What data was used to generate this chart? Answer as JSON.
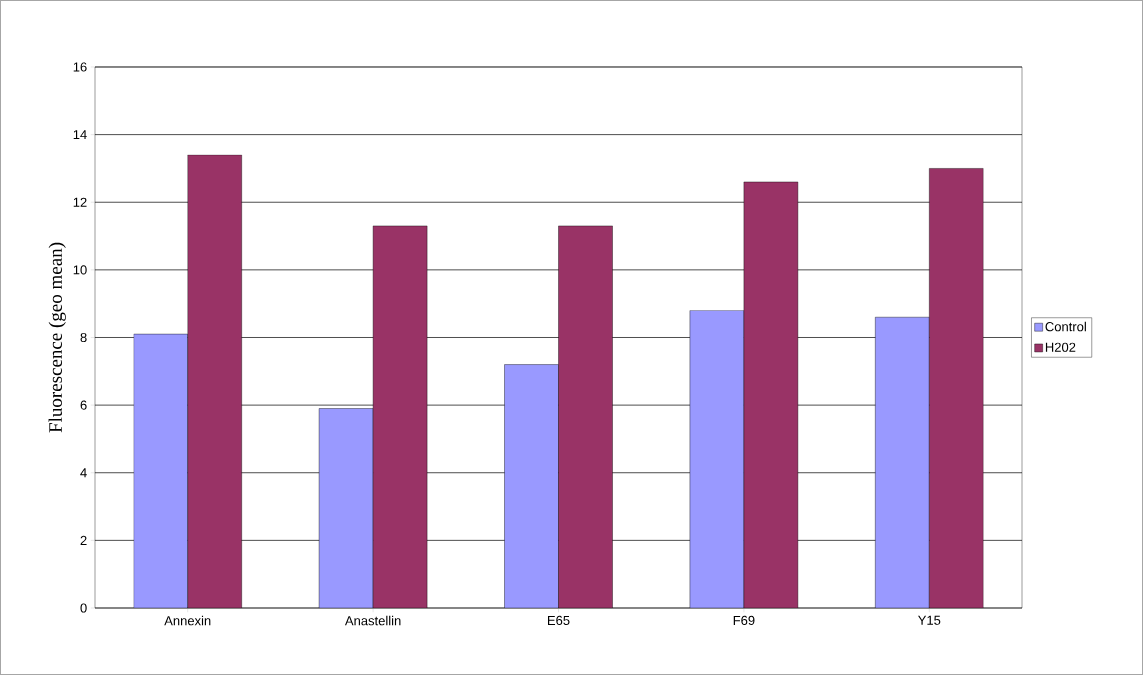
{
  "chart_data": {
    "type": "bar",
    "ylabel": "Fluorescence (geo mean)",
    "categories": [
      "Annexin",
      "Anastellin",
      "E65",
      "F69",
      "Y15"
    ],
    "series": [
      {
        "name": "Control",
        "color": "#9999ff",
        "values": [
          8.1,
          5.9,
          7.2,
          8.8,
          8.6
        ]
      },
      {
        "name": "H202",
        "color": "#993366",
        "values": [
          13.4,
          11.3,
          11.3,
          12.6,
          13.0
        ]
      }
    ],
    "ylim": [
      0,
      16
    ],
    "yticks": [
      0,
      2,
      4,
      6,
      8,
      10,
      12,
      14,
      16
    ],
    "grid": "y",
    "legend": "right"
  }
}
